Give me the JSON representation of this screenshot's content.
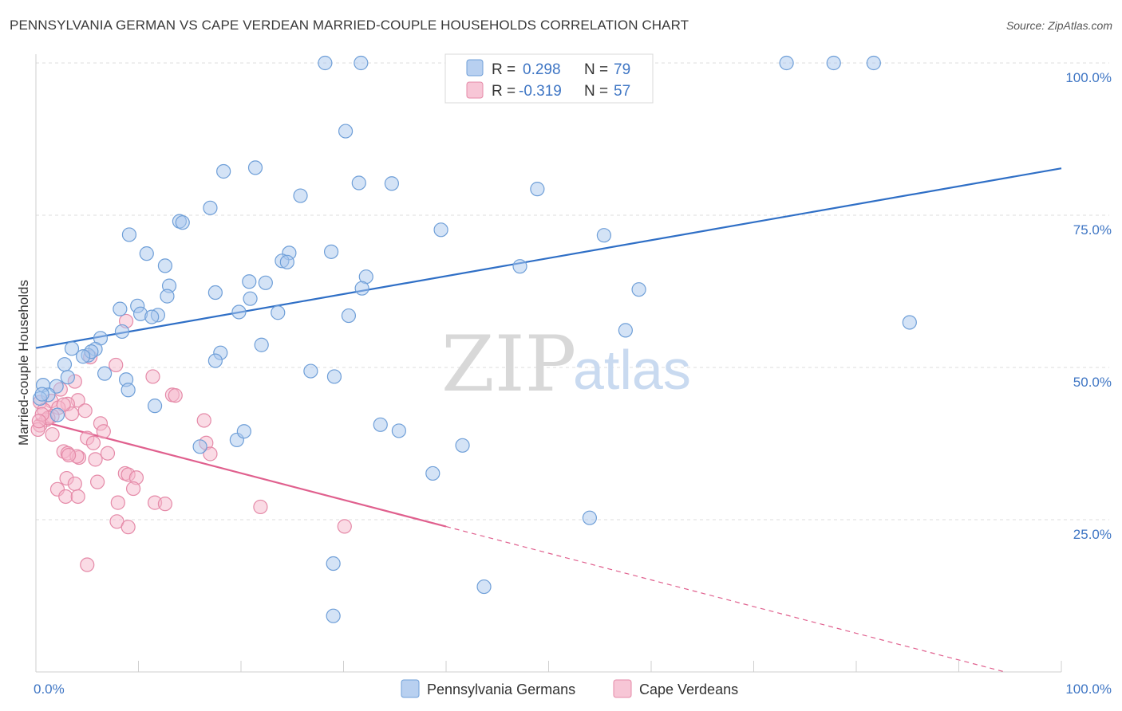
{
  "title": "PENNSYLVANIA GERMAN VS CAPE VERDEAN MARRIED-COUPLE HOUSEHOLDS CORRELATION CHART",
  "source": "Source: ZipAtlas.com",
  "watermark": {
    "zip": "ZIP",
    "atlas": "atlas"
  },
  "legend": {
    "rows": [
      {
        "r_label": "R =",
        "r_value": "0.298",
        "n_label": "N =",
        "n_value": "79"
      },
      {
        "r_label": "R =",
        "r_value": "-0.319",
        "n_label": "N =",
        "n_value": "57"
      }
    ]
  },
  "bottom_legend": [
    "Pennsylvania Germans",
    "Cape Verdeans"
  ],
  "colors": {
    "blue_fill": "#a9c8ee",
    "blue_stroke": "#6f9fd8",
    "blue_line": "#2f6fc6",
    "pink_fill": "#f5b8cc",
    "pink_stroke": "#e58aa8",
    "pink_line": "#e0608e"
  },
  "chart_data": {
    "type": "scatter",
    "title": "PENNSYLVANIA GERMAN VS CAPE VERDEAN MARRIED-COUPLE HOUSEHOLDS CORRELATION CHART",
    "xlabel": "",
    "ylabel": "Married-couple Households",
    "xlim": [
      0,
      100
    ],
    "ylim": [
      0,
      100
    ],
    "x_tick_labels": [
      "0.0%",
      "100.0%"
    ],
    "y_tick_labels": [
      "25.0%",
      "50.0%",
      "75.0%",
      "100.0%"
    ],
    "y_ticks": [
      25,
      50,
      75,
      100
    ],
    "grid": true,
    "series": [
      {
        "name": "Pennsylvania Germans",
        "r": 0.298,
        "n": 79,
        "trend": {
          "x": [
            0,
            100
          ],
          "y": [
            53.2,
            82.7
          ],
          "solid_to": 100
        },
        "points": [
          [
            28.2,
            100
          ],
          [
            31.7,
            100
          ],
          [
            73.2,
            100
          ],
          [
            77.8,
            100
          ],
          [
            81.7,
            100
          ],
          [
            30.2,
            88.8
          ],
          [
            21.4,
            82.8
          ],
          [
            18.3,
            82.2
          ],
          [
            31.5,
            80.3
          ],
          [
            34.7,
            80.2
          ],
          [
            48.9,
            79.3
          ],
          [
            25.8,
            78.2
          ],
          [
            17.0,
            76.2
          ],
          [
            14.0,
            74.0
          ],
          [
            14.3,
            73.8
          ],
          [
            39.5,
            72.6
          ],
          [
            9.1,
            71.8
          ],
          [
            55.4,
            71.7
          ],
          [
            10.8,
            68.7
          ],
          [
            24.7,
            68.8
          ],
          [
            28.8,
            69.0
          ],
          [
            24.0,
            67.5
          ],
          [
            24.5,
            67.3
          ],
          [
            12.6,
            66.7
          ],
          [
            47.2,
            66.6
          ],
          [
            32.2,
            64.9
          ],
          [
            20.8,
            64.1
          ],
          [
            22.4,
            63.9
          ],
          [
            13.0,
            63.4
          ],
          [
            31.8,
            63.0
          ],
          [
            17.5,
            62.3
          ],
          [
            58.8,
            62.8
          ],
          [
            12.8,
            61.7
          ],
          [
            20.9,
            61.3
          ],
          [
            9.9,
            60.1
          ],
          [
            23.6,
            59.0
          ],
          [
            19.8,
            59.1
          ],
          [
            30.5,
            58.5
          ],
          [
            10.2,
            58.8
          ],
          [
            8.2,
            59.6
          ],
          [
            11.9,
            58.6
          ],
          [
            11.3,
            58.3
          ],
          [
            57.5,
            56.1
          ],
          [
            85.2,
            57.4
          ],
          [
            8.4,
            55.9
          ],
          [
            6.3,
            54.8
          ],
          [
            26.8,
            49.4
          ],
          [
            22.0,
            53.7
          ],
          [
            3.5,
            53.1
          ],
          [
            5.8,
            53.0
          ],
          [
            5.1,
            52.0
          ],
          [
            18.0,
            52.4
          ],
          [
            5.4,
            52.6
          ],
          [
            4.6,
            51.8
          ],
          [
            2.8,
            50.5
          ],
          [
            6.7,
            49.0
          ],
          [
            17.5,
            51.1
          ],
          [
            29.1,
            48.5
          ],
          [
            8.8,
            48.0
          ],
          [
            2.0,
            46.9
          ],
          [
            0.7,
            47.1
          ],
          [
            3.1,
            48.4
          ],
          [
            1.2,
            45.5
          ],
          [
            9.0,
            46.3
          ],
          [
            0.4,
            44.9
          ],
          [
            11.6,
            43.7
          ],
          [
            2.1,
            42.2
          ],
          [
            35.4,
            39.6
          ],
          [
            33.6,
            40.6
          ],
          [
            19.6,
            38.1
          ],
          [
            20.3,
            39.5
          ],
          [
            41.6,
            37.2
          ],
          [
            38.7,
            32.6
          ],
          [
            54.0,
            25.3
          ],
          [
            29.0,
            17.8
          ],
          [
            43.7,
            14.0
          ],
          [
            29.0,
            9.2
          ],
          [
            16.0,
            37.0
          ],
          [
            0.6,
            45.6
          ]
        ]
      },
      {
        "name": "Cape Verdeans",
        "r": -0.319,
        "n": 57,
        "trend": {
          "x": [
            0,
            94.5
          ],
          "y": [
            41.4,
            0
          ],
          "solid_to": 40
        },
        "points": [
          [
            8.8,
            57.6
          ],
          [
            5.3,
            51.7
          ],
          [
            7.8,
            50.4
          ],
          [
            11.4,
            48.5
          ],
          [
            3.8,
            47.7
          ],
          [
            2.4,
            46.4
          ],
          [
            13.3,
            45.5
          ],
          [
            0.4,
            44.3
          ],
          [
            1.5,
            44.5
          ],
          [
            4.1,
            44.6
          ],
          [
            3.1,
            44.0
          ],
          [
            4.8,
            42.9
          ],
          [
            0.8,
            43.0
          ],
          [
            2.2,
            43.4
          ],
          [
            3.5,
            42.4
          ],
          [
            13.6,
            45.4
          ],
          [
            1.6,
            42.0
          ],
          [
            1.0,
            41.4
          ],
          [
            0.4,
            40.5
          ],
          [
            0.2,
            39.8
          ],
          [
            6.3,
            40.8
          ],
          [
            16.4,
            41.3
          ],
          [
            1.6,
            39.0
          ],
          [
            6.6,
            39.5
          ],
          [
            5.0,
            38.4
          ],
          [
            5.6,
            37.6
          ],
          [
            16.6,
            37.6
          ],
          [
            2.7,
            36.2
          ],
          [
            3.1,
            35.9
          ],
          [
            7.0,
            35.9
          ],
          [
            4.2,
            35.2
          ],
          [
            5.8,
            34.9
          ],
          [
            4.0,
            35.4
          ],
          [
            17.0,
            35.8
          ],
          [
            8.7,
            32.6
          ],
          [
            9.0,
            32.4
          ],
          [
            9.8,
            31.9
          ],
          [
            3.0,
            31.8
          ],
          [
            3.8,
            30.9
          ],
          [
            6.0,
            31.2
          ],
          [
            9.5,
            30.1
          ],
          [
            2.1,
            30.0
          ],
          [
            2.9,
            28.8
          ],
          [
            4.1,
            28.8
          ],
          [
            8.0,
            27.8
          ],
          [
            11.6,
            27.8
          ],
          [
            12.6,
            27.6
          ],
          [
            21.9,
            27.1
          ],
          [
            7.9,
            24.7
          ],
          [
            9.0,
            23.8
          ],
          [
            30.1,
            23.9
          ],
          [
            5.0,
            17.6
          ],
          [
            1.2,
            41.7
          ],
          [
            2.7,
            43.9
          ],
          [
            0.6,
            42.3
          ],
          [
            0.3,
            41.2
          ],
          [
            3.2,
            35.6
          ]
        ]
      }
    ]
  }
}
